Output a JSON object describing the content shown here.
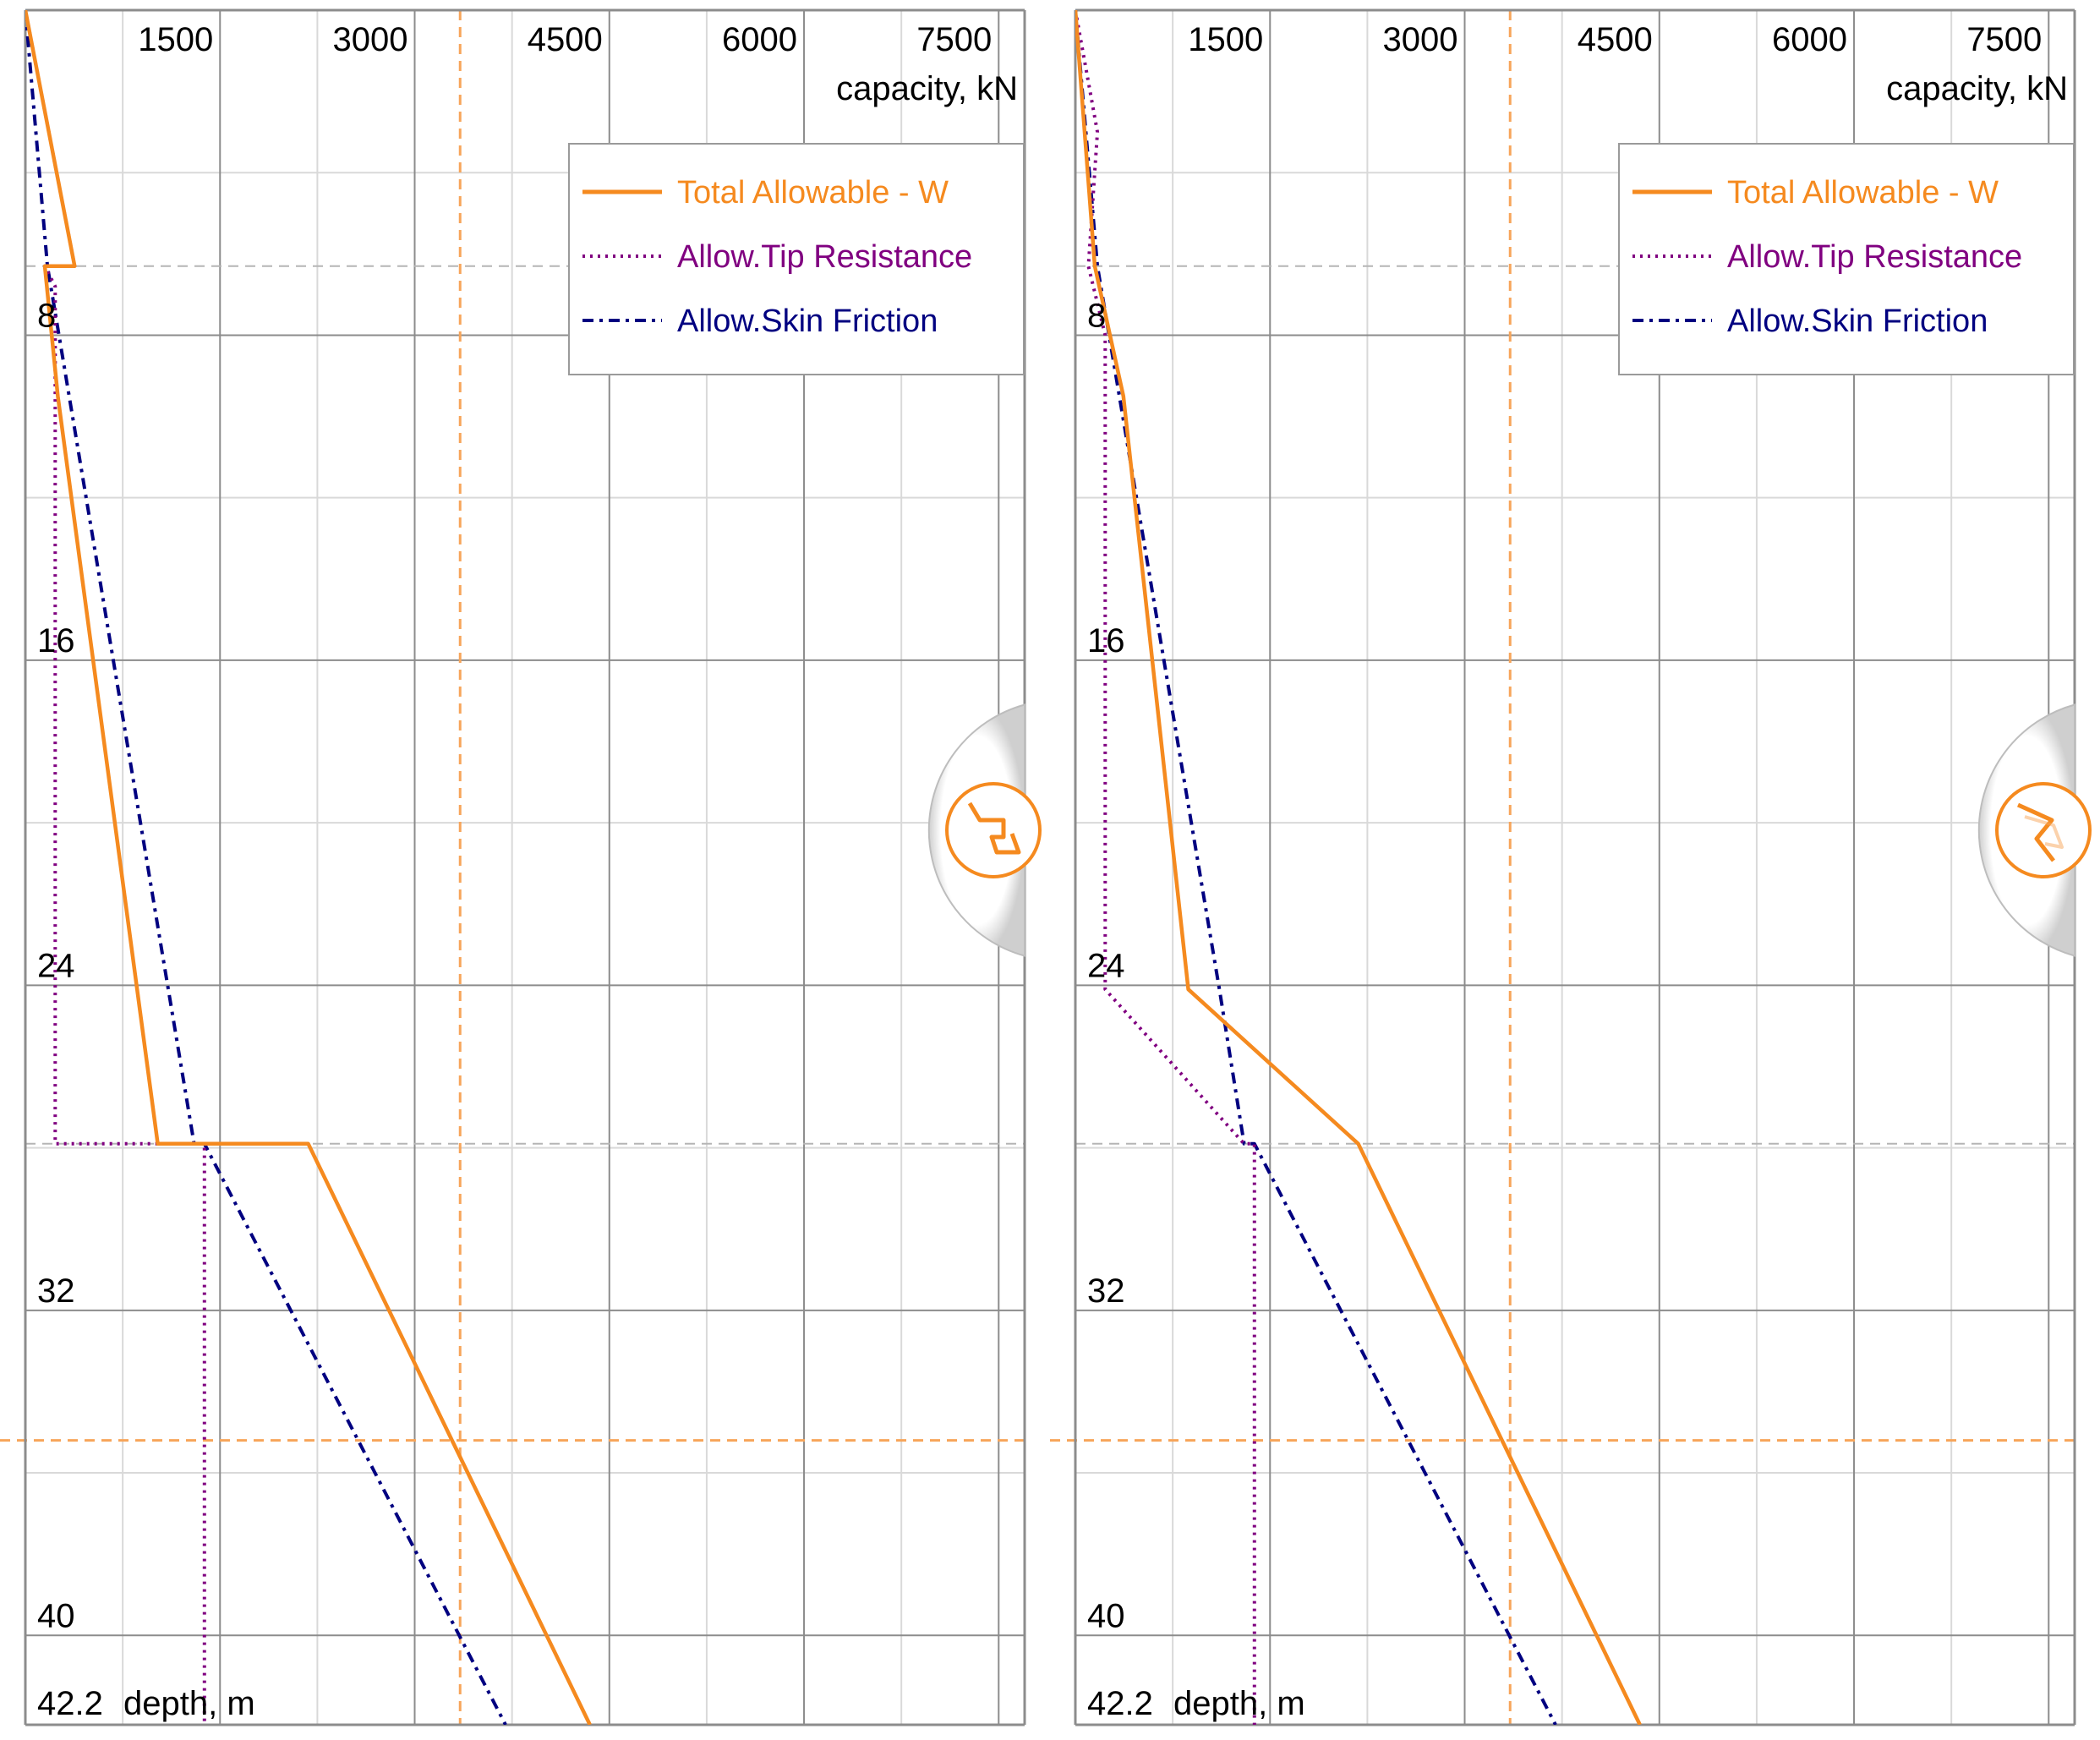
{
  "colors": {
    "total": "#f58a1f",
    "tip": "#800080",
    "skin": "#000080",
    "grid_major": "#8c8c8c",
    "grid_minor": "#d9d9d9",
    "marker": "#f7a55a",
    "layer_boundary": "#b5b5b5"
  },
  "icon_names": [
    "pile-chart-icon",
    "pile-chart-icon"
  ],
  "chart_data": [
    {
      "type": "line",
      "x_axis": {
        "label": "capacity, kN",
        "position": "top",
        "range": [
          0,
          7700
        ],
        "ticks": [
          1500,
          3000,
          4500,
          6000,
          7500
        ],
        "tick_labels": [
          "1500",
          "3000",
          "4500",
          "6000",
          "7500"
        ]
      },
      "y_axis": {
        "label": "depth, m",
        "range": [
          0,
          42.2
        ],
        "inverted": true,
        "ticks": [
          8,
          16,
          24,
          32,
          40
        ],
        "tick_labels": [
          "8",
          "16",
          "24",
          "32",
          "40"
        ],
        "max_label": "42.2"
      },
      "grid": true,
      "legend": {
        "placement": "top-right",
        "entries": [
          "Total Allowable - W",
          "Allow.Tip Resistance",
          "Allow.Skin Friction"
        ]
      },
      "reference_lines": {
        "x": 3350,
        "y": 35.2
      },
      "layer_boundaries": [
        6.3,
        27.9
      ],
      "series": [
        {
          "name": "Total Allowable - W",
          "style": "solid",
          "x": [
            0,
            380,
            150,
            250,
            1020,
            2180,
            4350
          ],
          "y": [
            0,
            6.3,
            6.3,
            9.5,
            27.9,
            27.9,
            42.2
          ]
        },
        {
          "name": "Allow.Tip Resistance",
          "style": "dotted",
          "x": [
            0,
            380,
            150,
            230,
            230,
            1040,
            1380,
            1380
          ],
          "y": [
            0,
            6.3,
            6.3,
            6.8,
            27.9,
            27.9,
            27.9,
            42.2
          ]
        },
        {
          "name": "Allow.Skin Friction",
          "style": "dash-dot",
          "x": [
            0,
            170,
            1300,
            1380,
            3700
          ],
          "y": [
            0,
            6.3,
            27.9,
            27.9,
            42.2
          ]
        }
      ]
    },
    {
      "type": "line",
      "x_axis": {
        "label": "capacity, kN",
        "position": "top",
        "range": [
          0,
          7700
        ],
        "ticks": [
          1500,
          3000,
          4500,
          6000,
          7500
        ],
        "tick_labels": [
          "1500",
          "3000",
          "4500",
          "6000",
          "7500"
        ]
      },
      "y_axis": {
        "label": "depth, m",
        "range": [
          0,
          42.2
        ],
        "inverted": true,
        "ticks": [
          8,
          16,
          24,
          32,
          40
        ],
        "tick_labels": [
          "8",
          "16",
          "24",
          "32",
          "40"
        ],
        "max_label": "42.2"
      },
      "grid": true,
      "legend": {
        "placement": "top-right",
        "entries": [
          "Total Allowable - W",
          "Allow.Tip Resistance",
          "Allow.Skin Friction"
        ]
      },
      "reference_lines": {
        "x": 3350,
        "y": 35.2
      },
      "layer_boundaries": [
        6.3,
        27.9
      ],
      "series": [
        {
          "name": "Total Allowable - W",
          "style": "solid",
          "x": [
            0,
            150,
            370,
            870,
            2180,
            4350
          ],
          "y": [
            0,
            6.3,
            9.5,
            24.1,
            27.9,
            42.2
          ]
        },
        {
          "name": "Allow.Tip Resistance",
          "style": "dotted",
          "x": [
            0,
            170,
            100,
            230,
            230,
            1300,
            1380,
            1380
          ],
          "y": [
            0,
            3.0,
            6.3,
            8.0,
            24.1,
            27.9,
            27.9,
            42.2
          ]
        },
        {
          "name": "Allow.Skin Friction",
          "style": "dash-dot",
          "x": [
            0,
            170,
            1110,
            1300,
            1380,
            3700
          ],
          "y": [
            0,
            6.3,
            24.1,
            27.9,
            27.9,
            42.2
          ]
        }
      ]
    }
  ]
}
